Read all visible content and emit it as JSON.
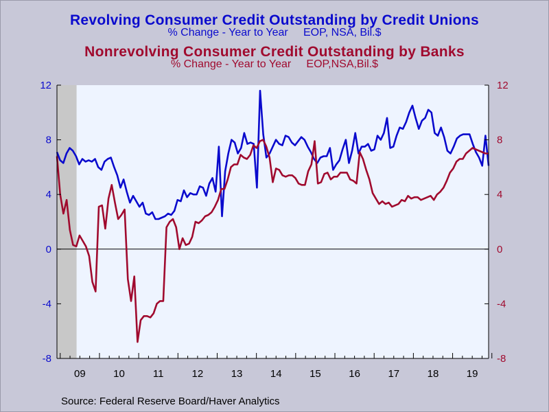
{
  "titles": {
    "title1": "Revolving Consumer Credit Outstanding by Credit Unions",
    "subtitle1": "% Change - Year to Year     EOP, NSA, Bil.$",
    "title2": "Nonrevolving Consumer Credit Outstanding by Banks",
    "subtitle2": "% Change - Year to Year     EOP,NSA,Bil.$"
  },
  "source": "Source:  Federal Reserve Board/Haver Analytics",
  "colors": {
    "series1": "#0a0acd",
    "series2": "#a00a2e",
    "plot_bg": "#eef4ff",
    "recession": "#c8c8c8"
  },
  "chart_data": {
    "type": "line",
    "title": "Revolving Consumer Credit Outstanding by Credit Unions / Nonrevolving Consumer Credit Outstanding by Banks",
    "x_range": [
      2008.917,
      2019.917
    ],
    "ylim_left": [
      -8,
      12
    ],
    "ylim_right": [
      -8,
      12
    ],
    "y_ticks": [
      -8,
      -4,
      0,
      4,
      8,
      12
    ],
    "x_tick_labels": [
      "09",
      "10",
      "11",
      "12",
      "13",
      "14",
      "15",
      "16",
      "17",
      "18",
      "19"
    ],
    "recession_shading": [
      2008.917,
      2009.417
    ],
    "zero_line": true,
    "grid": false,
    "legend": "titles above chart",
    "series": [
      {
        "name": "Revolving Consumer Credit Outstanding by Credit Unions",
        "axis": "left",
        "color": "#0a0acd",
        "values": [
          7.1,
          6.5,
          6.3,
          7.0,
          7.4,
          7.2,
          6.8,
          6.2,
          6.6,
          6.4,
          6.5,
          6.4,
          6.6,
          6.0,
          5.8,
          6.4,
          6.6,
          6.7,
          6.0,
          5.4,
          4.5,
          5.1,
          4.2,
          3.4,
          3.9,
          3.5,
          3.1,
          3.4,
          2.6,
          2.5,
          2.7,
          2.2,
          2.2,
          2.3,
          2.4,
          2.6,
          2.5,
          2.8,
          3.6,
          3.5,
          4.3,
          3.8,
          4.1,
          4.0,
          4.0,
          4.6,
          4.5,
          3.9,
          4.8,
          5.2,
          4.2,
          7.5,
          2.4,
          5.7,
          7.0,
          8.0,
          7.8,
          7.0,
          7.4,
          8.5,
          7.7,
          7.8,
          7.7,
          4.5,
          11.6,
          8.4,
          6.7,
          7.0,
          7.5,
          8.0,
          7.7,
          7.6,
          8.3,
          8.2,
          7.8,
          7.6,
          7.9,
          8.2,
          8.0,
          7.5,
          7.1,
          6.6,
          6.3,
          6.7,
          6.8,
          6.8,
          7.4,
          5.8,
          6.2,
          6.5,
          7.3,
          8.0,
          6.3,
          7.2,
          8.5,
          7.0,
          7.5,
          7.5,
          7.7,
          7.2,
          7.3,
          8.3,
          8.0,
          8.5,
          9.6,
          7.4,
          7.5,
          8.3,
          8.9,
          8.8,
          9.3,
          10.0,
          10.5,
          9.6,
          8.8,
          9.4,
          9.6,
          10.2,
          10.0,
          8.5,
          8.3,
          8.9,
          8.2,
          7.2,
          7.0,
          7.5,
          8.1,
          8.3,
          8.4,
          8.4,
          8.4,
          7.7,
          7.1,
          6.7,
          6.1,
          8.3,
          6.1
        ]
      },
      {
        "name": "Nonrevolving Consumer Credit Outstanding by Banks",
        "axis": "right",
        "color": "#a00a2e",
        "values": [
          6.8,
          4.0,
          2.6,
          3.6,
          1.4,
          0.3,
          0.2,
          1.0,
          0.6,
          0.2,
          -0.5,
          -2.4,
          -3.1,
          3.1,
          3.2,
          1.5,
          3.7,
          4.7,
          3.4,
          2.2,
          2.5,
          2.9,
          -2.2,
          -3.8,
          -2.0,
          -6.8,
          -5.2,
          -4.9,
          -4.9,
          -5.0,
          -4.7,
          -4.0,
          -3.8,
          -3.8,
          1.6,
          2.0,
          2.2,
          1.6,
          0.0,
          0.8,
          0.3,
          0.4,
          0.9,
          2.0,
          1.9,
          2.1,
          2.4,
          2.5,
          2.7,
          3.1,
          3.6,
          4.4,
          4.4,
          5.1,
          6.0,
          6.2,
          6.2,
          6.9,
          6.7,
          6.6,
          6.9,
          7.6,
          7.4,
          7.9,
          8.0,
          7.5,
          6.7,
          4.9,
          5.9,
          5.8,
          5.4,
          5.3,
          5.4,
          5.4,
          5.2,
          4.8,
          4.7,
          4.7,
          5.7,
          6.2,
          7.9,
          4.8,
          4.9,
          5.5,
          5.6,
          5.1,
          5.3,
          5.3,
          5.6,
          5.6,
          5.6,
          5.1,
          5.0,
          4.8,
          7.1,
          6.6,
          5.8,
          5.1,
          4.1,
          3.7,
          3.3,
          3.5,
          3.3,
          3.4,
          3.1,
          3.2,
          3.3,
          3.6,
          3.5,
          3.9,
          3.7,
          3.8,
          3.8,
          3.6,
          3.7,
          3.8,
          3.9,
          3.6,
          4.0,
          4.2,
          4.5,
          5.0,
          5.6,
          5.9,
          6.4,
          6.6,
          6.6,
          7.0,
          7.2,
          7.4,
          7.3,
          7.2,
          7.1,
          7.0,
          7.0
        ]
      }
    ]
  }
}
